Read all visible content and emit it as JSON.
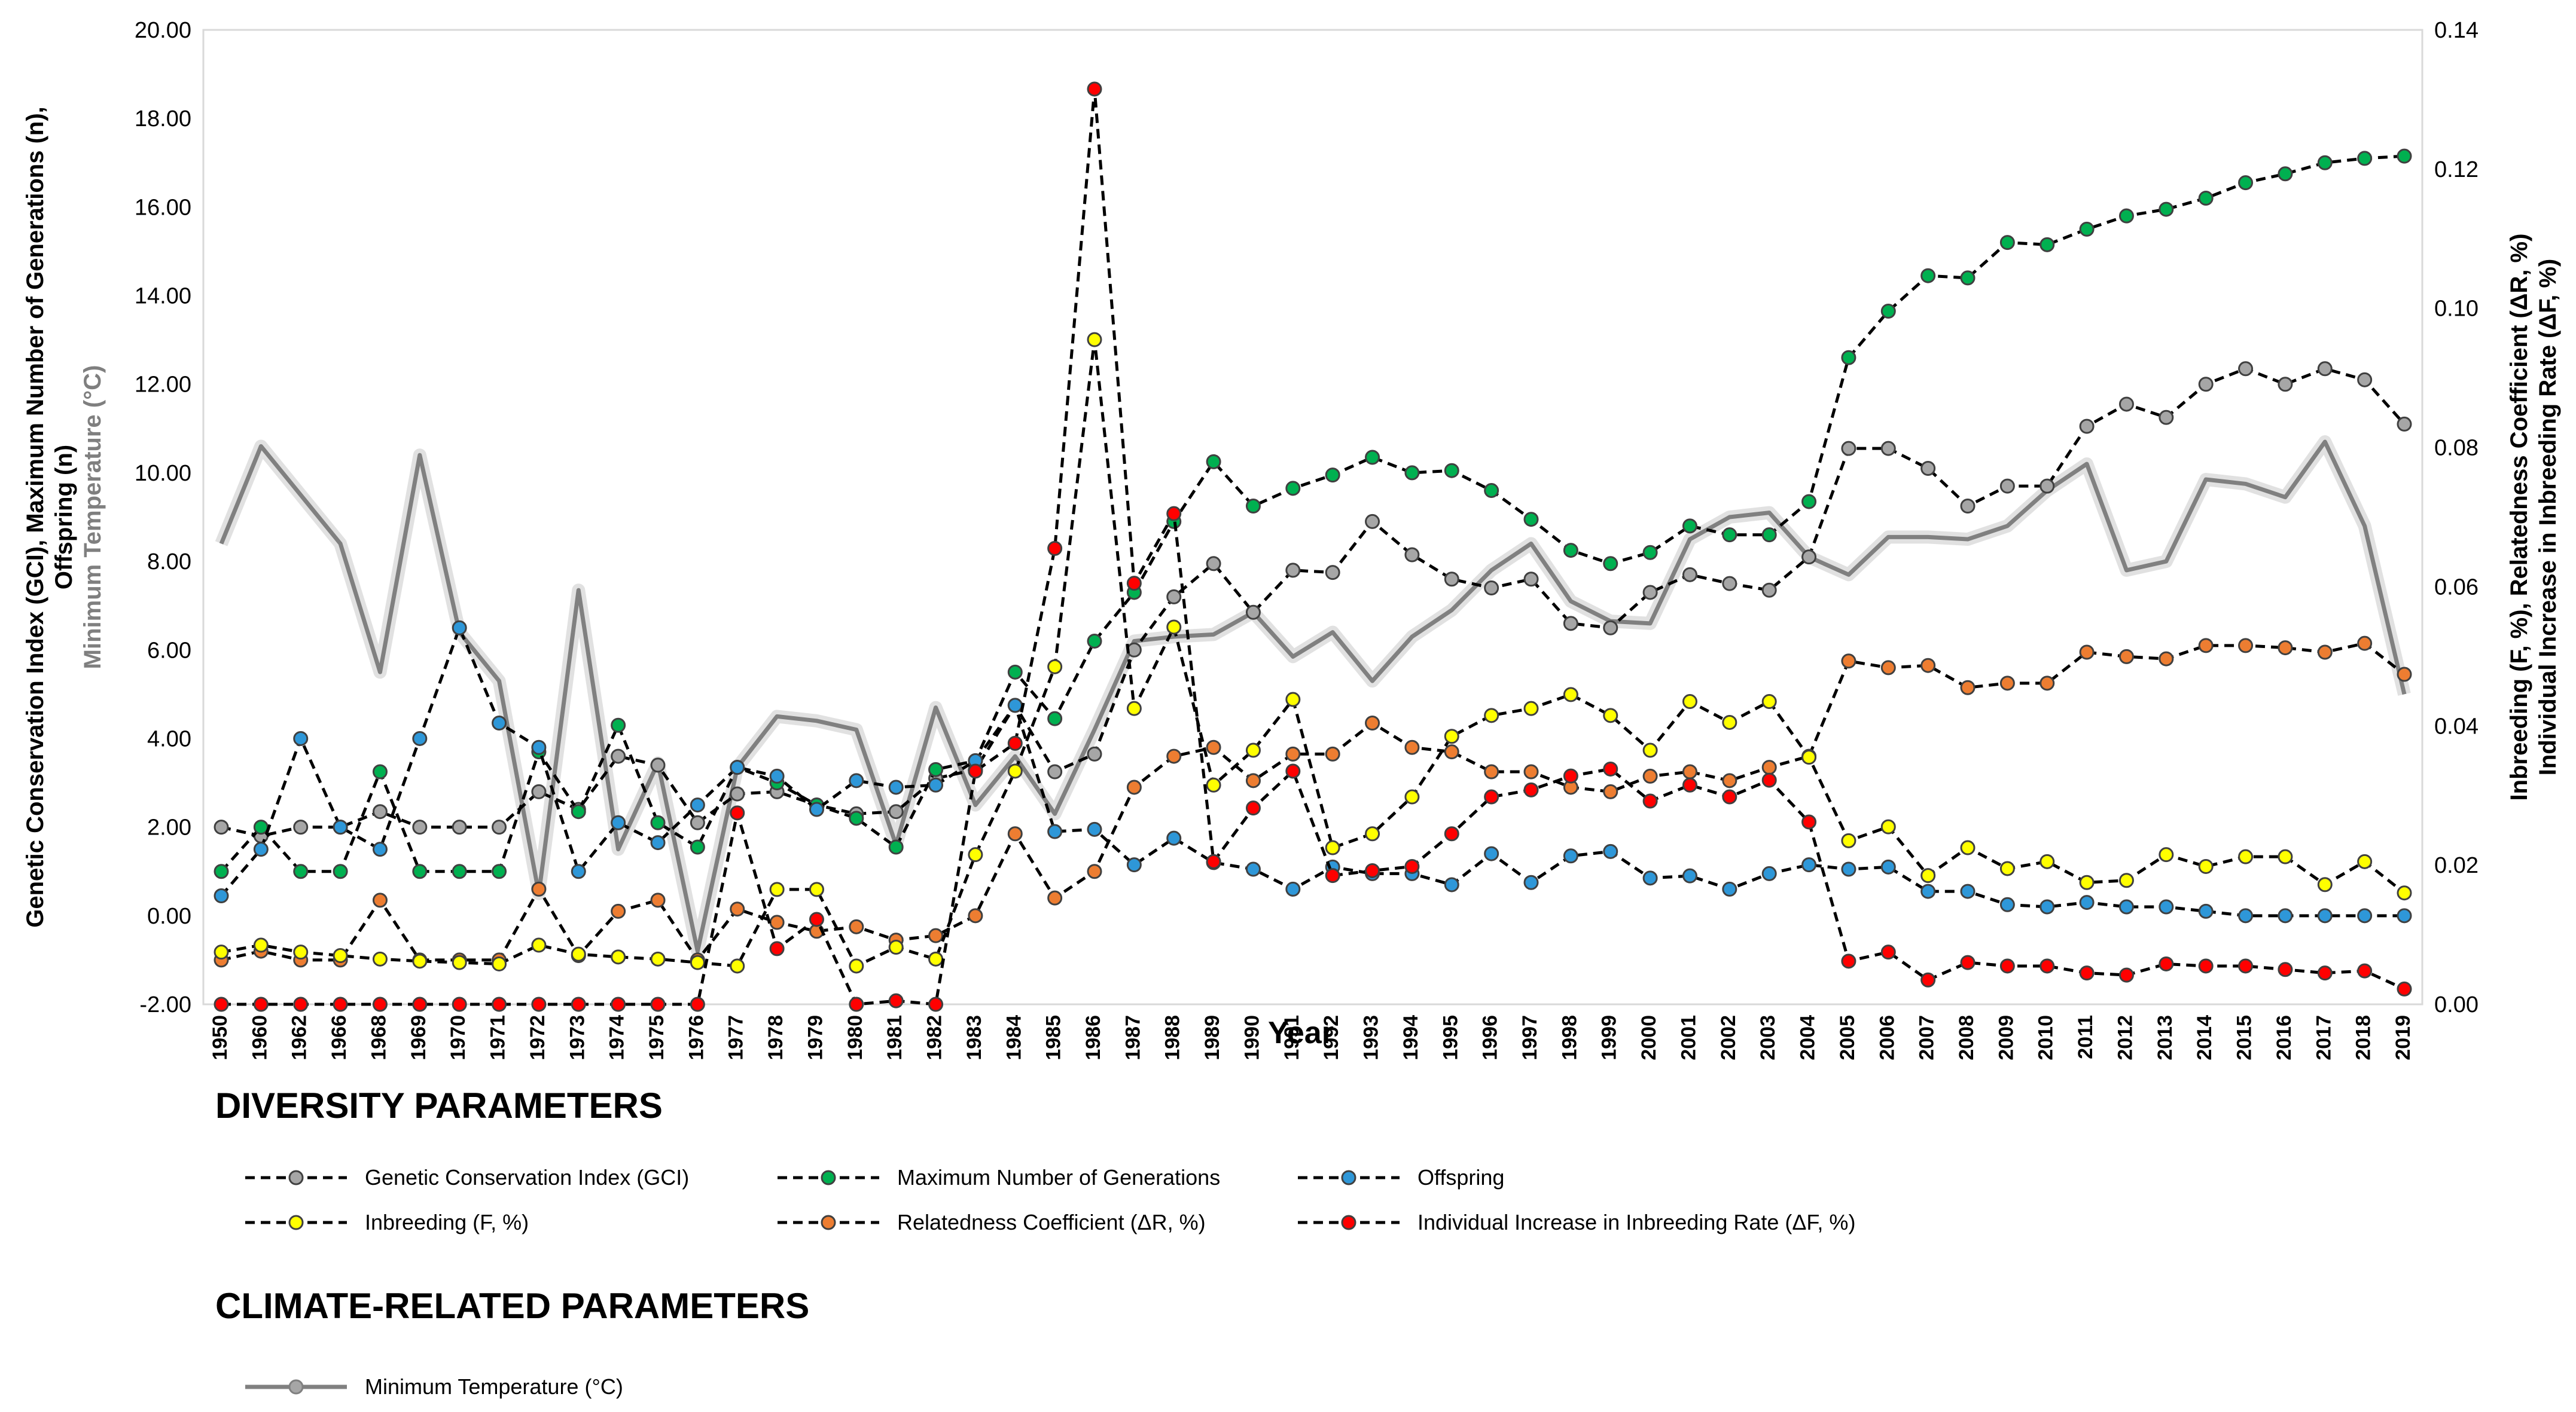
{
  "chart_data": {
    "type": "line",
    "xlabel": "Year",
    "ylabel_left_lines": [
      "Genetic Conservation Index (GCI), Maximum Number of Generations (n),",
      "Offspring (n)"
    ],
    "ylabel_left_temp": "Minimum Temperature (°C)",
    "ylabel_right_lines": [
      "Inbreeding (F, %), Relatedness Coefficient (ΔR, %)",
      "Individual Increase in Inbreeding Rate (ΔF, %)"
    ],
    "ylim_left": [
      -2,
      20
    ],
    "ylim_right": [
      0,
      0.14
    ],
    "yticks_left": [
      "-2.00",
      "0.00",
      "2.00",
      "4.00",
      "6.00",
      "8.00",
      "10.00",
      "12.00",
      "14.00",
      "16.00",
      "18.00",
      "20.00"
    ],
    "yticks_right": [
      "0.00",
      "0.02",
      "0.04",
      "0.06",
      "0.08",
      "0.10",
      "0.12",
      "0.14"
    ],
    "years": [
      "1950",
      "1960",
      "1962",
      "1966",
      "1968",
      "1969",
      "1970",
      "1971",
      "1972",
      "1973",
      "1974",
      "1975",
      "1976",
      "1977",
      "1978",
      "1979",
      "1980",
      "1981",
      "1982",
      "1983",
      "1984",
      "1985",
      "1986",
      "1987",
      "1988",
      "1989",
      "1990",
      "1991",
      "1992",
      "1993",
      "1994",
      "1995",
      "1996",
      "1997",
      "1998",
      "1999",
      "2000",
      "2001",
      "2002",
      "2003",
      "2004",
      "2005",
      "2006",
      "2007",
      "2008",
      "2009",
      "2010",
      "2011",
      "2012",
      "2013",
      "2014",
      "2015",
      "2016",
      "2017",
      "2018",
      "2019"
    ],
    "x_tick_labels": [
      "1950",
      "1960",
      "1962",
      "1966",
      "1968",
      "1969",
      "1970",
      "1971",
      "1972",
      "1973",
      "1974",
      "1975",
      "1976",
      "1977",
      "1978",
      "1979",
      "1980",
      "1981",
      "1982",
      "1983",
      "1984",
      "1985",
      "1986",
      "1987",
      "1988",
      "1989",
      "1990",
      "1991",
      "1992",
      "1993",
      "1994",
      "1995",
      "1996",
      "1997",
      "1998",
      "1999",
      "2000",
      "2001",
      "2002",
      "2003",
      "2004",
      "2005",
      "2006",
      "2007",
      "2008",
      "2009",
      "2010",
      "2011",
      "2012",
      "2013",
      "2014",
      "2015",
      "2016",
      "2017",
      "2018",
      "2019"
    ],
    "series": [
      {
        "name": "Genetic Conservation Index (GCI)",
        "axis": "left",
        "color": "#a6a6a6",
        "values": [
          2.0,
          1.8,
          2.0,
          2.0,
          2.35,
          2.0,
          2.0,
          2.0,
          2.8,
          2.4,
          3.6,
          3.4,
          2.1,
          2.75,
          2.8,
          2.5,
          2.3,
          2.35,
          3.1,
          3.3,
          4.75,
          3.25,
          3.65,
          6.0,
          7.2,
          7.95,
          6.85,
          7.8,
          7.75,
          8.9,
          8.15,
          7.6,
          7.4,
          7.6,
          6.6,
          6.5,
          7.3,
          7.7,
          7.5,
          7.35,
          8.1,
          10.55,
          10.55,
          10.1,
          9.25,
          9.7,
          9.7,
          11.05,
          11.55,
          11.25,
          12.0,
          12.35,
          12.0,
          12.35,
          12.1,
          11.1
        ]
      },
      {
        "name": "Maximum Number of Generations",
        "axis": "left",
        "color": "#00b050",
        "values": [
          1.0,
          2.0,
          1.0,
          1.0,
          3.25,
          1.0,
          1.0,
          1.0,
          3.7,
          2.35,
          4.3,
          2.1,
          1.55,
          3.35,
          3.0,
          2.5,
          2.2,
          1.55,
          3.3,
          3.5,
          5.5,
          4.45,
          6.2,
          7.3,
          8.9,
          10.25,
          9.25,
          9.65,
          9.95,
          10.35,
          10.0,
          10.05,
          9.6,
          8.95,
          8.25,
          7.95,
          8.2,
          8.8,
          8.6,
          8.6,
          9.35,
          12.6,
          13.65,
          14.45,
          14.4,
          15.2,
          15.15,
          15.5,
          15.8,
          15.95,
          16.2,
          16.55,
          16.75,
          17.0,
          17.1,
          17.15
        ]
      },
      {
        "name": "Offspring",
        "axis": "left",
        "color": "#2e97d8",
        "values": [
          0.45,
          1.5,
          4.0,
          2.0,
          1.5,
          4.0,
          6.5,
          4.35,
          3.8,
          1.0,
          2.1,
          1.65,
          2.5,
          3.35,
          3.15,
          2.4,
          3.05,
          2.9,
          2.95,
          3.5,
          4.75,
          1.9,
          1.95,
          1.15,
          1.75,
          1.2,
          1.05,
          0.6,
          1.1,
          0.95,
          0.95,
          0.7,
          1.4,
          0.75,
          1.35,
          1.45,
          0.85,
          0.9,
          0.6,
          0.95,
          1.15,
          1.05,
          1.1,
          0.55,
          0.55,
          0.25,
          0.2,
          0.3,
          0.2,
          0.2,
          0.1,
          0.0,
          0.0,
          0.0,
          0.0,
          0.0
        ]
      },
      {
        "name": "Inbreeding (F, %)",
        "axis": "right",
        "color": "#ffff00",
        "values": [
          0.0075,
          0.0085,
          0.0075,
          0.007,
          0.0065,
          0.0062,
          0.006,
          0.0058,
          0.0085,
          0.0072,
          0.0068,
          0.0065,
          0.006,
          0.0055,
          0.0165,
          0.0165,
          0.0055,
          0.0082,
          0.0065,
          0.0215,
          0.0335,
          0.0485,
          0.0955,
          0.0425,
          0.0542,
          0.0315,
          0.0365,
          0.0438,
          0.0225,
          0.0245,
          0.0298,
          0.0385,
          0.0415,
          0.0425,
          0.0445,
          0.0415,
          0.0365,
          0.0435,
          0.0405,
          0.0435,
          0.0355,
          0.0235,
          0.0255,
          0.0185,
          0.0225,
          0.0195,
          0.0205,
          0.0175,
          0.0178,
          0.0215,
          0.0198,
          0.0212,
          0.0212,
          0.0172,
          0.0205,
          0.016
        ]
      },
      {
        "name": "Relatedness Coefficient (ΔR, %)",
        "axis": "left",
        "color": "#ed7d31",
        "values": [
          -1.0,
          -0.8,
          -1.0,
          -1.0,
          0.35,
          -1.0,
          -1.0,
          -1.0,
          0.6,
          -0.9,
          0.1,
          0.35,
          -1.0,
          0.15,
          -0.15,
          -0.35,
          -0.25,
          -0.55,
          -0.45,
          0.0,
          1.85,
          0.4,
          1.0,
          2.9,
          3.6,
          3.8,
          3.05,
          3.65,
          3.65,
          4.35,
          3.8,
          3.7,
          3.25,
          3.25,
          2.9,
          2.8,
          3.15,
          3.25,
          3.05,
          3.35,
          3.6,
          5.75,
          5.6,
          5.65,
          5.15,
          5.25,
          5.25,
          5.95,
          5.85,
          5.8,
          6.1,
          6.1,
          6.05,
          5.95,
          6.15,
          5.45
        ]
      },
      {
        "name": "Individual Increase in Inbreeding Rate (ΔF, %)",
        "axis": "right",
        "color": "#ff0000",
        "values": [
          0.0,
          0.0,
          0.0,
          0.0,
          0.0,
          0.0,
          0.0,
          0.0,
          0.0,
          0.0,
          0.0,
          0.0,
          0.0,
          0.0275,
          0.008,
          0.0122,
          0.0,
          0.0005,
          0.0,
          0.0335,
          0.0375,
          0.0655,
          0.1315,
          0.0605,
          0.0705,
          0.0205,
          0.0282,
          0.0335,
          0.0185,
          0.0192,
          0.0198,
          0.0245,
          0.0298,
          0.0308,
          0.0328,
          0.0338,
          0.0292,
          0.0315,
          0.0298,
          0.0322,
          0.0262,
          0.0062,
          0.0075,
          0.0035,
          0.006,
          0.0055,
          0.0055,
          0.0045,
          0.0042,
          0.0058,
          0.0055,
          0.0055,
          0.005,
          0.0045,
          0.0048,
          0.0022
        ]
      },
      {
        "name": "Minimum Temperature (°C)",
        "axis": "left",
        "color": "#808080",
        "values": [
          8.4,
          10.6,
          9.5,
          8.4,
          5.5,
          10.4,
          6.4,
          5.3,
          0.5,
          7.35,
          1.5,
          3.45,
          -0.8,
          3.35,
          4.5,
          4.4,
          4.2,
          1.6,
          4.7,
          2.5,
          3.6,
          2.3,
          4.2,
          6.2,
          6.3,
          6.35,
          6.85,
          5.85,
          6.4,
          5.3,
          6.3,
          6.9,
          7.8,
          8.4,
          7.1,
          6.65,
          6.6,
          8.5,
          9.0,
          9.1,
          8.1,
          7.7,
          8.55,
          8.55,
          8.5,
          8.8,
          9.6,
          10.2,
          7.8,
          8.0,
          9.85,
          9.75,
          9.45,
          10.7,
          8.8,
          5.0
        ]
      }
    ]
  },
  "legend": {
    "diversity_title": "DIVERSITY PARAMETERS",
    "climate_title": "CLIMATE-RELATED PARAMETERS",
    "items_diversity": [
      "Genetic Conservation Index (GCI)",
      "Maximum Number of Generations",
      "Offspring",
      "Inbreeding (F, %)",
      "Relatedness Coefficient (ΔR, %)",
      "Individual Increase in Inbreeding Rate (ΔF, %)"
    ],
    "items_climate": [
      "Minimum Temperature (°C)"
    ]
  }
}
